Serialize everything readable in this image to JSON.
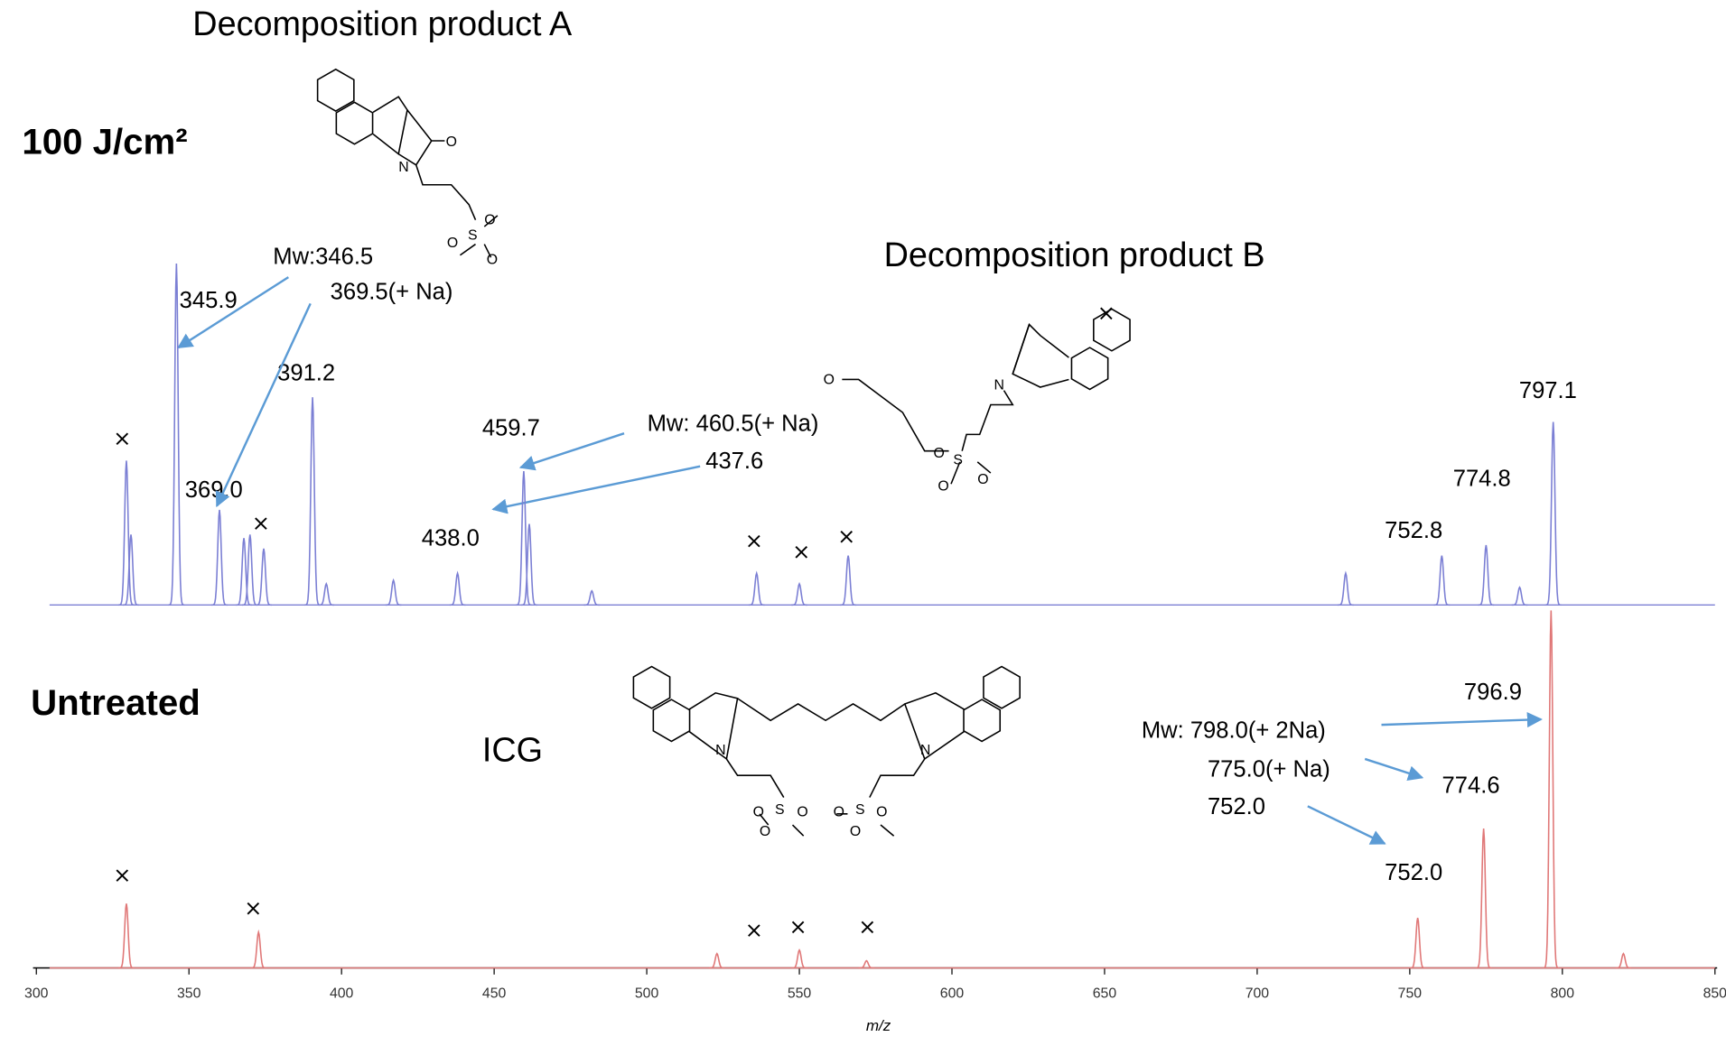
{
  "chart_data": {
    "type": "spectrum",
    "x_label": "m/z",
    "xlim": [
      300,
      850
    ],
    "xticks": [
      300,
      350,
      400,
      450,
      500,
      550,
      600,
      650,
      700,
      750,
      800,
      850
    ],
    "ylim": [
      0,
      100
    ],
    "panels": [
      {
        "label": "100 J/cm²",
        "color": "#7b7fd4",
        "x": [
          329.5,
          331,
          345.9,
          360,
          368,
          370,
          374.5,
          390.5,
          395,
          417,
          438,
          459.7,
          461.5,
          482,
          536,
          550,
          566,
          729,
          760.5,
          775,
          786,
          797
        ],
        "values": [
          41,
          20,
          97,
          27,
          19,
          20,
          16,
          59,
          6,
          7,
          9,
          38,
          23,
          4,
          9,
          6,
          14,
          9,
          14,
          17,
          5,
          52
        ]
      },
      {
        "label": "Untreated",
        "color": "#e07878",
        "x": [
          329.5,
          372.8,
          523,
          550,
          572,
          752.6,
          774.2,
          796.3,
          820
        ],
        "values": [
          18,
          10,
          4,
          5,
          2,
          14,
          39,
          100,
          4
        ]
      }
    ],
    "annotations": [
      "Decomposition product A",
      "Mw:346.5",
      "369.5(+ Na)",
      "345.9",
      "391.2",
      "369.0",
      "459.7",
      "Mw: 460.5(+ Na)",
      "437.6",
      "438.0",
      "Decomposition product B",
      "797.1",
      "774.8",
      "752.8",
      "ICG",
      "796.9",
      "Mw: 798.0(+ 2Na)",
      "775.0(+ Na)",
      "774.6",
      "752.0",
      "752.0"
    ],
    "atoms": [
      "O",
      "N",
      "O",
      "S",
      "O",
      "O",
      "O",
      "N",
      "O",
      "S",
      "O",
      "O",
      "N",
      "N",
      "S",
      "S",
      "O",
      "O",
      "O",
      "O",
      "O",
      "O"
    ]
  }
}
